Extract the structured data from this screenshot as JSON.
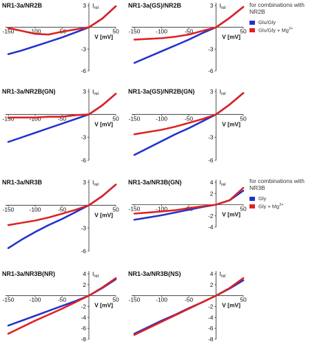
{
  "chart_data": [
    {
      "type": "line",
      "title": "NR1-3a/NR2B",
      "x_label": "V [mV]",
      "y_label": "I",
      "y_label_sub": "rel",
      "x": [
        -150,
        -125,
        -100,
        -75,
        -50,
        -25,
        0,
        25,
        50
      ],
      "xlim": [
        -150,
        50
      ],
      "xticks": [
        -150,
        -100,
        -50,
        50
      ],
      "ylim": [
        -6,
        3
      ],
      "yticks": [
        3,
        -3,
        -6
      ],
      "series": [
        {
          "color": "#2233cc",
          "values": [
            -3.7,
            -3.2,
            -2.6,
            -2.0,
            -1.4,
            -0.7,
            0,
            1.2,
            2.9
          ]
        },
        {
          "color": "#dd2222",
          "values": [
            -0.1,
            -0.5,
            -0.9,
            -1.0,
            -0.6,
            -0.3,
            0,
            1.2,
            2.9
          ]
        }
      ]
    },
    {
      "type": "line",
      "title": "NR1-3a(GS)/NR2B",
      "x_label": "V [mV]",
      "y_label": "I",
      "y_label_sub": "rel",
      "x": [
        -150,
        -125,
        -100,
        -75,
        -50,
        -25,
        0,
        25,
        50
      ],
      "xlim": [
        -150,
        50
      ],
      "xticks": [
        -150,
        -100,
        -50,
        50
      ],
      "ylim": [
        -6,
        3
      ],
      "yticks": [
        3,
        -3,
        -6
      ],
      "legend_title": "for combinations with NR2B",
      "series": [
        {
          "name": "Glu/Gly",
          "color": "#2233cc",
          "values": [
            -4.9,
            -4.1,
            -3.3,
            -2.5,
            -1.7,
            -0.8,
            0,
            1.3,
            2.8
          ]
        },
        {
          "name": "Glu/Gly + Mg",
          "name_sup": "2+",
          "color": "#dd2222",
          "values": [
            -1.7,
            -1.6,
            -1.5,
            -1.3,
            -1.0,
            -0.5,
            0,
            1.3,
            2.8
          ]
        }
      ]
    },
    {
      "type": "line",
      "title": "NR1-3a/NR2B(GN)",
      "x_label": "V [mV]",
      "y_label": "I",
      "y_label_sub": "rel",
      "x": [
        -150,
        -125,
        -100,
        -75,
        -50,
        -25,
        0,
        25,
        50
      ],
      "xlim": [
        -150,
        50
      ],
      "xticks": [
        -150,
        -100,
        -50,
        50
      ],
      "ylim": [
        -6,
        3
      ],
      "yticks": [
        3,
        -3,
        -6
      ],
      "series": [
        {
          "color": "#2233cc",
          "values": [
            -3.6,
            -3.0,
            -2.4,
            -1.8,
            -1.2,
            -0.6,
            0,
            1.2,
            2.7
          ]
        },
        {
          "color": "#dd2222",
          "values": [
            -0.4,
            -0.4,
            -0.4,
            -0.3,
            -0.3,
            -0.1,
            0,
            1.2,
            2.7
          ]
        }
      ]
    },
    {
      "type": "line",
      "title": "NR1-3a(GS)/NR2B(GN)",
      "x_label": "V [mV]",
      "y_label": "I",
      "y_label_sub": "rel",
      "x": [
        -150,
        -125,
        -100,
        -75,
        -50,
        -25,
        0,
        25,
        50
      ],
      "xlim": [
        -150,
        50
      ],
      "xticks": [
        -150,
        -100,
        -50,
        50
      ],
      "ylim": [
        -6,
        3
      ],
      "yticks": [
        3,
        -3,
        -6
      ],
      "series": [
        {
          "color": "#2233cc",
          "values": [
            -5.3,
            -4.4,
            -3.5,
            -2.6,
            -1.8,
            -0.9,
            0,
            1.3,
            2.8
          ]
        },
        {
          "color": "#dd2222",
          "values": [
            -2.6,
            -2.3,
            -2.0,
            -1.6,
            -1.1,
            -0.6,
            0,
            1.3,
            2.8
          ]
        }
      ]
    },
    {
      "type": "line",
      "title": "NR1-3a/NR3B",
      "x_label": "V [mV]",
      "y_label": "I",
      "y_label_sub": "rel",
      "x": [
        -150,
        -125,
        -100,
        -75,
        -50,
        -25,
        0,
        25,
        50
      ],
      "xlim": [
        -150,
        50
      ],
      "xticks": [
        -150,
        -100,
        -50,
        50
      ],
      "ylim": [
        -6,
        3
      ],
      "yticks": [
        3,
        -3,
        -6
      ],
      "series": [
        {
          "color": "#2233cc",
          "values": [
            -5.6,
            -4.5,
            -3.5,
            -2.6,
            -1.8,
            -0.9,
            0,
            1.2,
            2.7
          ]
        },
        {
          "color": "#dd2222",
          "values": [
            -2.6,
            -2.3,
            -2.0,
            -1.6,
            -1.1,
            -0.6,
            0,
            1.2,
            2.7
          ]
        }
      ]
    },
    {
      "type": "line",
      "title": "NR1-3a/NR3B(GN)",
      "x_label": "V [mV]",
      "y_label": "I",
      "y_label_sub": "rel",
      "x": [
        -150,
        -125,
        -100,
        -75,
        -50,
        -25,
        0,
        25,
        50
      ],
      "xlim": [
        -150,
        50
      ],
      "xticks": [
        -150,
        -100,
        -50,
        50
      ],
      "ylim": [
        -4,
        4
      ],
      "yticks": [
        4,
        2,
        -2,
        -4
      ],
      "legend_title": "for combinations with NR3B",
      "series": [
        {
          "name": "Gly",
          "color": "#2233cc",
          "values": [
            -2.7,
            -2.3,
            -1.9,
            -1.4,
            -0.9,
            -0.4,
            0,
            0.8,
            2.5
          ]
        },
        {
          "name": "Gly + Mg",
          "name_sup": "2+",
          "color": "#dd2222",
          "values": [
            -1.6,
            -1.4,
            -1.2,
            -1.0,
            -0.6,
            -0.3,
            0,
            0.8,
            3.0
          ]
        }
      ]
    },
    {
      "type": "line",
      "title": "NR1-3a/NR3B(NR)",
      "x_label": "V [mV]",
      "y_label": "I",
      "y_label_sub": "rel",
      "x": [
        -150,
        -125,
        -100,
        -75,
        -50,
        -25,
        0,
        25,
        50
      ],
      "xlim": [
        -150,
        50
      ],
      "xticks": [
        -150,
        -100,
        -50,
        50
      ],
      "ylim": [
        -8,
        4
      ],
      "yticks": [
        4,
        2,
        -2,
        -4,
        -6,
        -8
      ],
      "series": [
        {
          "color": "#2233cc",
          "values": [
            -5.5,
            -4.6,
            -3.7,
            -2.8,
            -1.9,
            -1.0,
            0,
            1.4,
            3.0
          ]
        },
        {
          "color": "#dd2222",
          "values": [
            -7.0,
            -5.8,
            -4.6,
            -3.5,
            -2.4,
            -1.2,
            0,
            1.5,
            3.2
          ]
        }
      ]
    },
    {
      "type": "line",
      "title": "NR1-3a/NR3B(NS)",
      "x_label": "V [mV]",
      "y_label": "I",
      "y_label_sub": "rel",
      "x": [
        -150,
        -125,
        -100,
        -75,
        -50,
        -25,
        0,
        25,
        50
      ],
      "xlim": [
        -150,
        50
      ],
      "xticks": [
        -150,
        -100,
        -50,
        50
      ],
      "ylim": [
        -8,
        4
      ],
      "yticks": [
        4,
        2,
        -2,
        -4,
        -6,
        -8
      ],
      "series": [
        {
          "color": "#2233cc",
          "values": [
            -7.0,
            -5.8,
            -4.6,
            -3.5,
            -2.3,
            -1.2,
            0,
            1.3,
            2.8
          ]
        },
        {
          "color": "#dd2222",
          "values": [
            -7.2,
            -6.0,
            -4.8,
            -3.6,
            -2.4,
            -1.2,
            0,
            1.4,
            3.2
          ]
        }
      ]
    }
  ]
}
